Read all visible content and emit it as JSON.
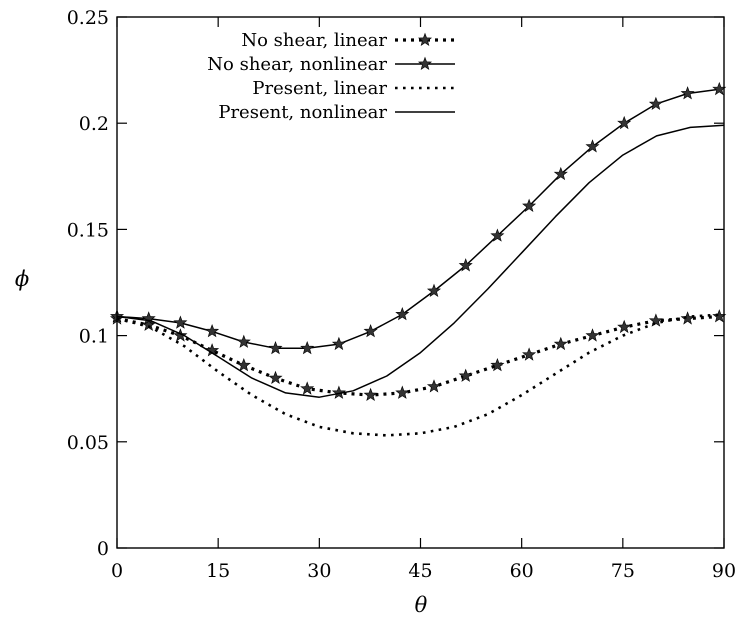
{
  "chart_data": {
    "type": "line",
    "title": "",
    "xlabel": "θ",
    "ylabel": "ϕ",
    "xlim": [
      0,
      90
    ],
    "ylim": [
      0,
      0.25
    ],
    "xticks": [
      0,
      15,
      30,
      45,
      60,
      75,
      90
    ],
    "yticks": [
      0,
      0.05,
      0.1,
      0.15,
      0.2,
      0.25
    ],
    "xtick_labels": [
      "0",
      "15",
      "30",
      "45",
      "60",
      "75",
      "90"
    ],
    "ytick_labels": [
      "0",
      "0.05",
      "0.1",
      "0.15",
      "0.2",
      "0.25"
    ],
    "grid": false,
    "legend_position": "top-left",
    "series": [
      {
        "name": "No shear, linear",
        "line_style": "dotted-thick",
        "marker": "star",
        "x": [
          0,
          4.7,
          9.4,
          14.1,
          18.8,
          23.5,
          28.2,
          32.9,
          37.6,
          42.3,
          47,
          51.7,
          56.4,
          61.1,
          65.8,
          70.5,
          75.2,
          79.9,
          84.6,
          89.3
        ],
        "y": [
          0.108,
          0.105,
          0.1,
          0.093,
          0.086,
          0.08,
          0.075,
          0.073,
          0.072,
          0.073,
          0.076,
          0.081,
          0.086,
          0.091,
          0.096,
          0.1,
          0.104,
          0.107,
          0.108,
          0.109
        ]
      },
      {
        "name": "No shear, nonlinear",
        "line_style": "solid",
        "marker": "star",
        "x": [
          0,
          4.7,
          9.4,
          14.1,
          18.8,
          23.5,
          28.2,
          32.9,
          37.6,
          42.3,
          47,
          51.7,
          56.4,
          61.1,
          65.8,
          70.5,
          75.2,
          79.9,
          84.6,
          89.3
        ],
        "y": [
          0.109,
          0.108,
          0.106,
          0.102,
          0.097,
          0.094,
          0.094,
          0.096,
          0.102,
          0.11,
          0.121,
          0.133,
          0.147,
          0.161,
          0.176,
          0.189,
          0.2,
          0.209,
          0.214,
          0.216
        ]
      },
      {
        "name": "Present, linear",
        "line_style": "dotted",
        "marker": "none",
        "x": [
          0,
          5,
          10,
          15,
          20,
          25,
          30,
          35,
          40,
          45,
          50,
          55,
          60,
          65,
          70,
          75,
          80,
          85,
          90
        ],
        "y": [
          0.108,
          0.104,
          0.095,
          0.083,
          0.072,
          0.063,
          0.057,
          0.054,
          0.053,
          0.054,
          0.057,
          0.063,
          0.072,
          0.082,
          0.092,
          0.1,
          0.106,
          0.109,
          0.11
        ]
      },
      {
        "name": "Present, nonlinear",
        "line_style": "solid",
        "marker": "none",
        "x": [
          0,
          5,
          10,
          15,
          20,
          25,
          30,
          35,
          40,
          45,
          50,
          55,
          60,
          65,
          70,
          75,
          80,
          85,
          90
        ],
        "y": [
          0.109,
          0.107,
          0.1,
          0.09,
          0.08,
          0.073,
          0.071,
          0.074,
          0.081,
          0.092,
          0.106,
          0.122,
          0.139,
          0.156,
          0.172,
          0.185,
          0.194,
          0.198,
          0.199
        ]
      }
    ]
  }
}
